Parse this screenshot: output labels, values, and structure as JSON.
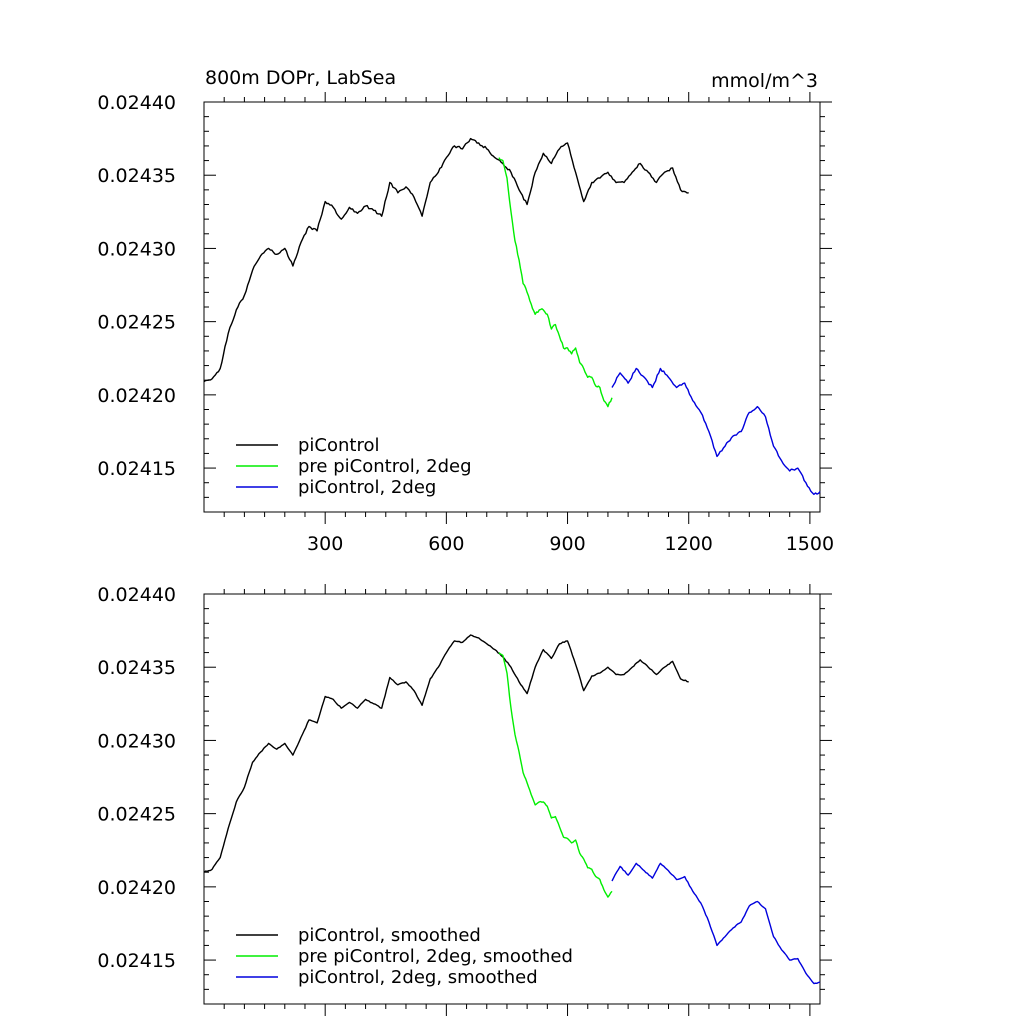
{
  "figure": {
    "title_left": "800m DOPr, LabSea",
    "title_right": "mmol/m^3"
  },
  "chart_data": [
    {
      "type": "line",
      "panel": "top",
      "xlim": [
        0,
        1525
      ],
      "ylim": [
        0.02412,
        0.0244
      ],
      "x_ticks": [
        300,
        600,
        900,
        1200,
        1500
      ],
      "x_tick_labels": [
        "300",
        "600",
        "900",
        "1200",
        "1500"
      ],
      "y_ticks": [
        0.0244,
        0.02435,
        0.0243,
        0.02425,
        0.0242,
        0.02415
      ],
      "y_tick_labels": [
        "0.02440",
        "0.02435",
        "0.02430",
        "0.02425",
        "0.02420",
        "0.02415"
      ],
      "grid": false,
      "legend_position": "bottom-left",
      "smoothed": false,
      "series": [
        {
          "name": "piControl",
          "color": "#000000",
          "x": [
            0,
            20,
            40,
            60,
            80,
            100,
            120,
            140,
            160,
            180,
            200,
            220,
            240,
            260,
            280,
            300,
            320,
            340,
            360,
            380,
            400,
            420,
            440,
            460,
            480,
            500,
            520,
            540,
            560,
            580,
            600,
            620,
            640,
            660,
            680,
            700,
            720,
            740,
            760,
            780,
            800,
            820,
            840,
            860,
            880,
            900,
            920,
            940,
            960,
            980,
            1000,
            1020,
            1040,
            1060,
            1080,
            1100,
            1120,
            1140,
            1160,
            1180,
            1200
          ],
          "y": [
            0.024209,
            0.024211,
            0.024218,
            0.024242,
            0.024258,
            0.024268,
            0.024285,
            0.024295,
            0.0243,
            0.024296,
            0.0243,
            0.024288,
            0.024304,
            0.024315,
            0.024312,
            0.024332,
            0.024328,
            0.02432,
            0.024328,
            0.024324,
            0.024329,
            0.024326,
            0.024322,
            0.024345,
            0.024338,
            0.024342,
            0.024335,
            0.024322,
            0.024345,
            0.024352,
            0.024362,
            0.02437,
            0.024368,
            0.024375,
            0.024372,
            0.024368,
            0.024362,
            0.024358,
            0.024352,
            0.02434,
            0.02433,
            0.024352,
            0.024365,
            0.024358,
            0.024368,
            0.024372,
            0.024352,
            0.024332,
            0.024345,
            0.024348,
            0.024352,
            0.024345,
            0.024345,
            0.024352,
            0.024358,
            0.024352,
            0.024345,
            0.024352,
            0.024355,
            0.02434,
            0.024338
          ]
        },
        {
          "name": "pre piControl, 2deg",
          "color": "#00ee00",
          "x": [
            730,
            740,
            750,
            760,
            770,
            780,
            790,
            800,
            810,
            820,
            830,
            840,
            850,
            860,
            870,
            880,
            890,
            900,
            910,
            920,
            930,
            940,
            950,
            960,
            970,
            980,
            990,
            1000,
            1010
          ],
          "y": [
            0.024362,
            0.02436,
            0.024348,
            0.024325,
            0.024305,
            0.024292,
            0.024276,
            0.02427,
            0.024262,
            0.024255,
            0.024258,
            0.024258,
            0.024255,
            0.024245,
            0.024248,
            0.02424,
            0.024232,
            0.024232,
            0.024228,
            0.024232,
            0.024222,
            0.024218,
            0.024212,
            0.024212,
            0.024206,
            0.024205,
            0.024196,
            0.024192,
            0.024198
          ]
        },
        {
          "name": "piControl, 2deg",
          "color": "#0000dd",
          "x": [
            1010,
            1030,
            1050,
            1070,
            1090,
            1110,
            1130,
            1150,
            1170,
            1190,
            1210,
            1230,
            1250,
            1270,
            1290,
            1310,
            1330,
            1350,
            1370,
            1390,
            1410,
            1430,
            1450,
            1470,
            1490,
            1510,
            1525
          ],
          "y": [
            0.024205,
            0.024215,
            0.024208,
            0.024218,
            0.024212,
            0.024205,
            0.024218,
            0.024212,
            0.024205,
            0.024208,
            0.024196,
            0.024188,
            0.024175,
            0.024158,
            0.024165,
            0.024172,
            0.024175,
            0.024188,
            0.024192,
            0.024185,
            0.024165,
            0.024155,
            0.024148,
            0.02415,
            0.02414,
            0.024132,
            0.024134
          ]
        }
      ]
    },
    {
      "type": "line",
      "panel": "bottom",
      "xlim": [
        0,
        1525
      ],
      "ylim": [
        0.02412,
        0.0244
      ],
      "x_ticks": [
        300,
        600,
        900,
        1200,
        1500
      ],
      "y_ticks": [
        0.0244,
        0.02435,
        0.0243,
        0.02425,
        0.0242,
        0.02415
      ],
      "y_tick_labels": [
        "0.02440",
        "0.02435",
        "0.02430",
        "0.02425",
        "0.02420",
        "0.02415"
      ],
      "grid": false,
      "legend_position": "bottom-left",
      "smoothed": true,
      "series": [
        {
          "name": "piControl, smoothed",
          "color": "#000000",
          "x": [
            0,
            20,
            40,
            60,
            80,
            100,
            120,
            140,
            160,
            180,
            200,
            220,
            240,
            260,
            280,
            300,
            320,
            340,
            360,
            380,
            400,
            420,
            440,
            460,
            480,
            500,
            520,
            540,
            560,
            580,
            600,
            620,
            640,
            660,
            680,
            700,
            720,
            740,
            760,
            780,
            800,
            820,
            840,
            860,
            880,
            900,
            920,
            940,
            960,
            980,
            1000,
            1020,
            1040,
            1060,
            1080,
            1100,
            1120,
            1140,
            1160,
            1180,
            1200
          ],
          "y": [
            0.02421,
            0.024212,
            0.02422,
            0.02424,
            0.024258,
            0.024268,
            0.024285,
            0.024292,
            0.024298,
            0.024294,
            0.024298,
            0.02429,
            0.024302,
            0.024314,
            0.024312,
            0.02433,
            0.024328,
            0.024322,
            0.024326,
            0.024322,
            0.024328,
            0.024325,
            0.024322,
            0.024343,
            0.024338,
            0.02434,
            0.024334,
            0.024324,
            0.024342,
            0.02435,
            0.02436,
            0.024368,
            0.024367,
            0.024372,
            0.02437,
            0.024366,
            0.024362,
            0.024357,
            0.02435,
            0.02434,
            0.024332,
            0.02435,
            0.024362,
            0.024356,
            0.024366,
            0.024368,
            0.024352,
            0.024334,
            0.024344,
            0.024346,
            0.02435,
            0.024345,
            0.024345,
            0.02435,
            0.024355,
            0.02435,
            0.024345,
            0.02435,
            0.024354,
            0.024342,
            0.02434
          ]
        },
        {
          "name": "pre piControl, 2deg, smoothed",
          "color": "#00ee00",
          "x": [
            730,
            740,
            750,
            760,
            770,
            780,
            790,
            800,
            810,
            820,
            830,
            840,
            850,
            860,
            870,
            880,
            890,
            900,
            910,
            920,
            930,
            940,
            950,
            960,
            970,
            980,
            990,
            1000,
            1010
          ],
          "y": [
            0.02436,
            0.024358,
            0.024346,
            0.024322,
            0.024304,
            0.024292,
            0.024278,
            0.024271,
            0.024263,
            0.024256,
            0.024258,
            0.024258,
            0.024255,
            0.024247,
            0.024248,
            0.024241,
            0.024234,
            0.024233,
            0.02423,
            0.024232,
            0.024223,
            0.024219,
            0.024213,
            0.024212,
            0.024207,
            0.024205,
            0.024198,
            0.024193,
            0.024197
          ]
        },
        {
          "name": "piControl, 2deg, smoothed",
          "color": "#0000dd",
          "x": [
            1010,
            1030,
            1050,
            1070,
            1090,
            1110,
            1130,
            1150,
            1170,
            1190,
            1210,
            1230,
            1250,
            1270,
            1290,
            1310,
            1330,
            1350,
            1370,
            1390,
            1410,
            1430,
            1450,
            1470,
            1490,
            1510,
            1525
          ],
          "y": [
            0.024204,
            0.024214,
            0.024208,
            0.024216,
            0.024211,
            0.024206,
            0.024216,
            0.024211,
            0.024205,
            0.024207,
            0.024197,
            0.024189,
            0.024176,
            0.02416,
            0.024166,
            0.024172,
            0.024176,
            0.024187,
            0.02419,
            0.024185,
            0.024166,
            0.024157,
            0.02415,
            0.024151,
            0.024141,
            0.024134,
            0.024135
          ]
        }
      ]
    }
  ]
}
